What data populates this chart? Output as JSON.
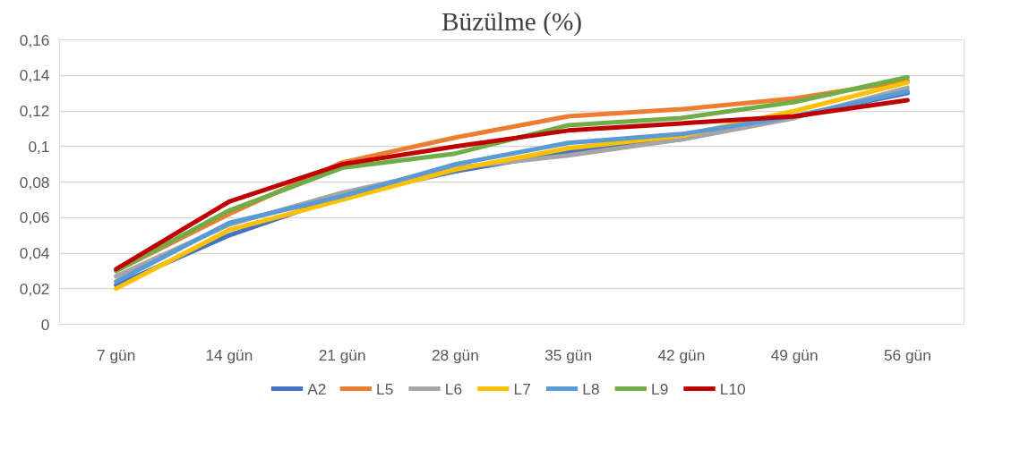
{
  "chart_data": {
    "type": "line",
    "title": "Büzülme (%)",
    "categories": [
      "7 gün",
      "14 gün",
      "21 gün",
      "28 gün",
      "35 gün",
      "42 gün",
      "49 gün",
      "56 gün"
    ],
    "series": [
      {
        "name": "A2",
        "color": "#4472c4",
        "values": [
          0.022,
          0.05,
          0.072,
          0.086,
          0.097,
          0.104,
          0.117,
          0.13
        ]
      },
      {
        "name": "L5",
        "color": "#ed7d31",
        "values": [
          0.03,
          0.062,
          0.091,
          0.105,
          0.117,
          0.121,
          0.127,
          0.137
        ]
      },
      {
        "name": "L6",
        "color": "#a5a5a5",
        "values": [
          0.027,
          0.056,
          0.074,
          0.088,
          0.095,
          0.104,
          0.116,
          0.133
        ]
      },
      {
        "name": "L7",
        "color": "#ffc000",
        "values": [
          0.02,
          0.053,
          0.07,
          0.087,
          0.099,
          0.106,
          0.12,
          0.136
        ]
      },
      {
        "name": "L8",
        "color": "#5b9bd5",
        "values": [
          0.024,
          0.057,
          0.072,
          0.09,
          0.102,
          0.107,
          0.117,
          0.131
        ]
      },
      {
        "name": "L9",
        "color": "#70ad47",
        "values": [
          0.03,
          0.064,
          0.088,
          0.096,
          0.112,
          0.116,
          0.125,
          0.139
        ]
      },
      {
        "name": "L10",
        "color": "#c00000",
        "values": [
          0.031,
          0.069,
          0.09,
          0.1,
          0.109,
          0.113,
          0.117,
          0.126
        ]
      }
    ],
    "ylim": [
      0,
      0.16
    ],
    "yticks": [
      0,
      {
        "value": 0.02,
        "label": "0,02"
      },
      {
        "value": 0.04,
        "label": "0,04"
      },
      {
        "value": 0.06,
        "label": "0,06"
      },
      {
        "value": 0.08,
        "label": "0,08"
      },
      {
        "value": 0.1,
        "label": "0,1"
      },
      {
        "value": 0.12,
        "label": "0,12"
      },
      {
        "value": 0.14,
        "label": "0,14"
      },
      {
        "value": 0.16,
        "label": "0,16"
      }
    ],
    "grid": "y",
    "legend": "bottom",
    "marker": "none",
    "line_style": "solid"
  }
}
